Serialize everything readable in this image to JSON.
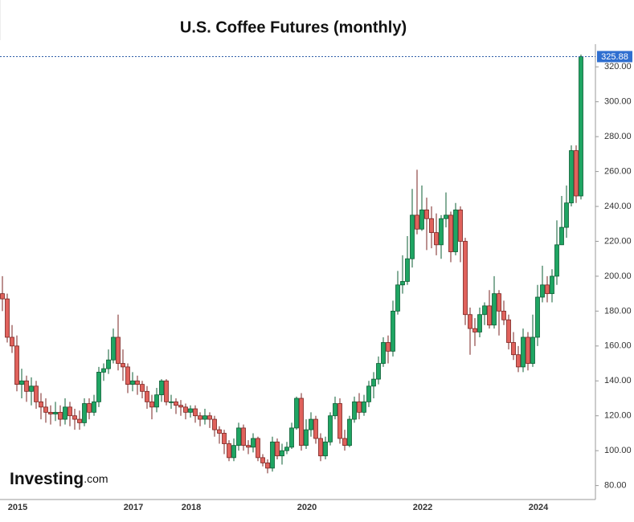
{
  "chart_data": {
    "type": "candlestick",
    "title": "U.S. Coffee Futures (monthly)",
    "logo": {
      "brand": "Investing",
      "suffix": ".com"
    },
    "categories": [
      null,
      null,
      null,
      "2015",
      null,
      null,
      null,
      null,
      null,
      null,
      null,
      null,
      null,
      null,
      null,
      null,
      null,
      null,
      null,
      null,
      null,
      null,
      null,
      null,
      null,
      null,
      null,
      "2017",
      null,
      null,
      null,
      null,
      null,
      null,
      null,
      null,
      null,
      null,
      null,
      "2018",
      null,
      null,
      null,
      null,
      null,
      null,
      null,
      null,
      null,
      null,
      null,
      null,
      null,
      null,
      null,
      null,
      null,
      null,
      null,
      null,
      null,
      null,
      null,
      "2020",
      null,
      null,
      null,
      null,
      null,
      null,
      null,
      null,
      null,
      null,
      null,
      null,
      null,
      null,
      null,
      null,
      null,
      null,
      null,
      null,
      null,
      null,
      null,
      "2022",
      null,
      null,
      null,
      null,
      null,
      null,
      null,
      null,
      null,
      null,
      null,
      null,
      null,
      null,
      null,
      null,
      null,
      null,
      null,
      null,
      null,
      null,
      null,
      "2024",
      null,
      null,
      null,
      null,
      null,
      null,
      null,
      null,
      null
    ],
    "open": [
      190,
      187,
      165,
      160,
      138,
      140,
      134,
      137,
      128,
      125,
      122,
      121,
      122,
      118,
      125,
      120,
      118,
      116,
      127,
      122,
      128,
      145,
      147,
      152,
      165,
      150,
      148,
      138,
      140,
      138,
      134,
      128,
      125,
      132,
      140,
      128,
      128,
      126,
      125,
      122,
      124,
      120,
      118,
      120,
      118,
      112,
      110,
      104,
      96,
      103,
      113,
      103,
      102,
      107,
      96,
      93,
      90,
      105,
      97,
      100,
      102,
      113,
      130,
      103,
      112,
      118,
      107,
      97,
      105,
      120,
      127,
      107,
      103,
      118,
      128,
      122,
      128,
      137,
      141,
      150,
      162,
      157,
      180,
      195,
      197,
      210,
      235,
      227,
      238,
      233,
      225,
      218,
      233,
      235,
      214,
      238,
      220,
      178,
      170,
      168,
      178,
      183,
      172,
      190,
      180,
      175,
      162,
      155,
      148,
      165,
      150,
      165,
      188,
      195,
      190,
      200,
      218,
      228,
      242,
      272,
      246
    ],
    "high": [
      200,
      190,
      172,
      166,
      147,
      143,
      142,
      140,
      133,
      130,
      126,
      128,
      126,
      130,
      128,
      124,
      123,
      130,
      130,
      132,
      148,
      150,
      158,
      170,
      178,
      158,
      150,
      145,
      143,
      140,
      137,
      132,
      136,
      141,
      141,
      132,
      130,
      129,
      127,
      126,
      126,
      122,
      124,
      122,
      120,
      114,
      112,
      106,
      107,
      116,
      115,
      106,
      110,
      108,
      98,
      95,
      108,
      107,
      104,
      105,
      116,
      131,
      133,
      118,
      122,
      120,
      110,
      108,
      122,
      131,
      130,
      112,
      120,
      131,
      133,
      132,
      140,
      145,
      154,
      165,
      166,
      186,
      203,
      212,
      223,
      250,
      261,
      252,
      245,
      240,
      236,
      235,
      248,
      237,
      242,
      240,
      222,
      182,
      176,
      182,
      185,
      192,
      200,
      192,
      186,
      178,
      168,
      160,
      170,
      168,
      178,
      195,
      206,
      200,
      204,
      232,
      246,
      252,
      275,
      275,
      327
    ],
    "low": [
      180,
      162,
      156,
      134,
      130,
      128,
      126,
      124,
      118,
      116,
      115,
      117,
      114,
      115,
      114,
      112,
      112,
      114,
      118,
      120,
      125,
      140,
      144,
      150,
      146,
      140,
      133,
      134,
      132,
      130,
      124,
      118,
      122,
      128,
      126,
      124,
      121,
      120,
      118,
      119,
      116,
      114,
      115,
      113,
      108,
      104,
      98,
      94,
      94,
      100,
      100,
      98,
      99,
      94,
      91,
      87,
      88,
      95,
      92,
      98,
      101,
      112,
      100,
      101,
      108,
      104,
      94,
      95,
      103,
      118,
      104,
      100,
      102,
      116,
      118,
      120,
      125,
      130,
      138,
      148,
      150,
      154,
      178,
      190,
      195,
      205,
      224,
      226,
      215,
      216,
      212,
      210,
      228,
      208,
      212,
      208,
      172,
      155,
      160,
      165,
      172,
      170,
      170,
      166,
      172,
      158,
      152,
      145,
      145,
      146,
      148,
      160,
      185,
      185,
      185,
      195,
      218,
      222,
      240,
      242,
      244
    ],
    "close": [
      187,
      165,
      160,
      138,
      140,
      134,
      137,
      128,
      125,
      122,
      121,
      122,
      118,
      125,
      120,
      118,
      116,
      127,
      122,
      128,
      145,
      147,
      152,
      165,
      150,
      148,
      138,
      140,
      138,
      134,
      128,
      125,
      132,
      140,
      128,
      128,
      126,
      125,
      122,
      124,
      120,
      118,
      120,
      118,
      112,
      110,
      104,
      96,
      103,
      113,
      103,
      102,
      107,
      96,
      93,
      90,
      105,
      97,
      100,
      102,
      113,
      130,
      103,
      112,
      118,
      107,
      97,
      105,
      120,
      127,
      107,
      103,
      118,
      128,
      122,
      128,
      137,
      141,
      150,
      162,
      157,
      180,
      195,
      197,
      210,
      235,
      227,
      238,
      233,
      225,
      218,
      233,
      235,
      214,
      238,
      220,
      178,
      170,
      168,
      178,
      183,
      172,
      190,
      180,
      175,
      162,
      155,
      148,
      165,
      150,
      165,
      188,
      195,
      190,
      200,
      218,
      228,
      242,
      272,
      246,
      325.88
    ],
    "up_color": "#1fa563",
    "down_color": "#e0625c",
    "ylim": [
      72,
      333
    ],
    "yticks": [
      {
        "value": 80,
        "label": "80.00"
      },
      {
        "value": 100,
        "label": "100.00"
      },
      {
        "value": 120,
        "label": "120.00"
      },
      {
        "value": 140,
        "label": "140.00"
      },
      {
        "value": 160,
        "label": "160.00"
      },
      {
        "value": 180,
        "label": "180.00"
      },
      {
        "value": 200,
        "label": "200.00"
      },
      {
        "value": 220,
        "label": "220.00"
      },
      {
        "value": 240,
        "label": "240.00"
      },
      {
        "value": 260,
        "label": "260.00"
      },
      {
        "value": 280,
        "label": "280.00"
      },
      {
        "value": 300,
        "label": "300.00"
      },
      {
        "value": 320,
        "label": "320.00"
      }
    ],
    "grid": false
  }
}
